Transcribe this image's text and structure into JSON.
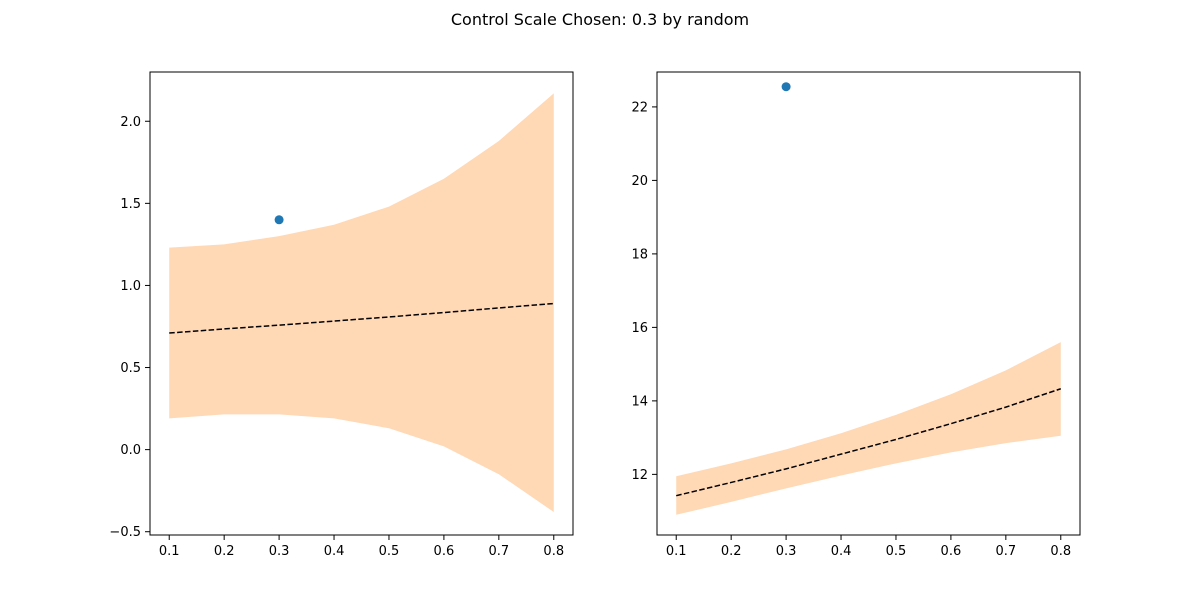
{
  "figure": {
    "title": "Control Scale Chosen: 0.3 by random"
  },
  "colors": {
    "band": "#ffd8b5",
    "mean_line": "#000000",
    "point": "#1f77b4",
    "axes": "#000000"
  },
  "chart_data": [
    {
      "type": "line",
      "x": [
        0.1,
        0.2,
        0.3,
        0.4,
        0.5,
        0.6,
        0.7,
        0.8
      ],
      "series": [
        {
          "role": "mean",
          "style": "dashed",
          "values": [
            0.71,
            0.735,
            0.758,
            0.783,
            0.808,
            0.835,
            0.863,
            0.89
          ]
        },
        {
          "role": "band_upper",
          "values": [
            1.23,
            1.25,
            1.3,
            1.37,
            1.48,
            1.65,
            1.88,
            2.17
          ]
        },
        {
          "role": "band_lower",
          "values": [
            0.19,
            0.215,
            0.215,
            0.19,
            0.13,
            0.02,
            -0.15,
            -0.38
          ]
        }
      ],
      "points": [
        {
          "x": 0.3,
          "y": 1.4
        }
      ],
      "xlim": [
        0.065,
        0.835
      ],
      "ylim": [
        -0.52,
        2.3
      ],
      "xticks": [
        0.1,
        0.2,
        0.3,
        0.4,
        0.5,
        0.6,
        0.7,
        0.8
      ],
      "xtick_labels": [
        "0.1",
        "0.2",
        "0.3",
        "0.4",
        "0.5",
        "0.6",
        "0.7",
        "0.8"
      ],
      "yticks": [
        -0.5,
        0.0,
        0.5,
        1.0,
        1.5,
        2.0
      ],
      "ytick_labels": [
        "−0.5",
        "0.0",
        "0.5",
        "1.0",
        "1.5",
        "2.0"
      ],
      "grid": false
    },
    {
      "type": "line",
      "x": [
        0.1,
        0.2,
        0.3,
        0.4,
        0.5,
        0.6,
        0.7,
        0.8
      ],
      "series": [
        {
          "role": "mean",
          "style": "dashed",
          "values": [
            11.42,
            11.78,
            12.15,
            12.55,
            12.95,
            13.38,
            13.83,
            14.33
          ]
        },
        {
          "role": "band_upper",
          "values": [
            11.95,
            12.3,
            12.68,
            13.12,
            13.62,
            14.18,
            14.83,
            15.6
          ]
        },
        {
          "role": "band_lower",
          "values": [
            10.9,
            11.25,
            11.62,
            11.97,
            12.3,
            12.6,
            12.85,
            13.05
          ]
        }
      ],
      "points": [
        {
          "x": 0.3,
          "y": 22.55
        }
      ],
      "xlim": [
        0.065,
        0.835
      ],
      "ylim": [
        10.35,
        22.95
      ],
      "xticks": [
        0.1,
        0.2,
        0.3,
        0.4,
        0.5,
        0.6,
        0.7,
        0.8
      ],
      "xtick_labels": [
        "0.1",
        "0.2",
        "0.3",
        "0.4",
        "0.5",
        "0.6",
        "0.7",
        "0.8"
      ],
      "yticks": [
        12,
        14,
        16,
        18,
        20,
        22
      ],
      "ytick_labels": [
        "12",
        "14",
        "16",
        "18",
        "20",
        "22"
      ],
      "grid": false
    }
  ]
}
